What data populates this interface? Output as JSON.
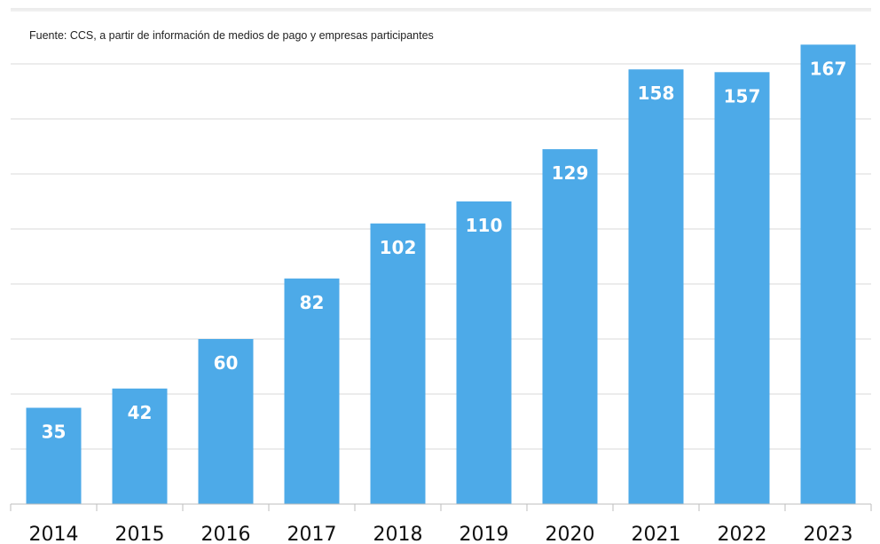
{
  "source_note": "Fuente: CCS, a partir de información de medios de pago y empresas participantes",
  "colors": {
    "bar": "#4daae8",
    "bar_label": "#ffffff",
    "grid": "#d9d9d9",
    "axis": "#bdbdbd",
    "text": "#111111"
  },
  "chart_data": {
    "type": "bar",
    "categories": [
      "2014",
      "2015",
      "2016",
      "2017",
      "2018",
      "2019",
      "2020",
      "2021",
      "2022",
      "2023"
    ],
    "values": [
      35,
      42,
      60,
      82,
      102,
      110,
      129,
      158,
      157,
      167
    ],
    "data_labels": [
      "35",
      "42",
      "60",
      "82",
      "102",
      "110",
      "129",
      "158",
      "157",
      "167"
    ],
    "title": "",
    "xlabel": "",
    "ylabel": "",
    "ylim": [
      0,
      180
    ],
    "grid": true,
    "grid_step": 20,
    "legend": "none"
  }
}
